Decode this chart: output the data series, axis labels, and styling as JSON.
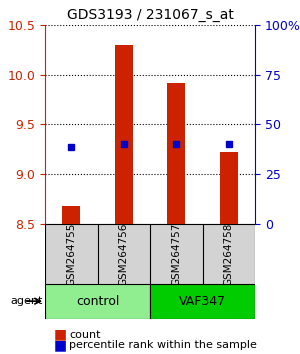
{
  "title": "GDS3193 / 231067_s_at",
  "samples": [
    "GSM264755",
    "GSM264756",
    "GSM264757",
    "GSM264758"
  ],
  "groups": [
    "control",
    "control",
    "VAF347",
    "VAF347"
  ],
  "group_labels": [
    "control",
    "VAF347"
  ],
  "group_colors": [
    "#90EE90",
    "#00CC00"
  ],
  "bar_color": "#CC2200",
  "dot_color": "#0000CC",
  "count_values": [
    8.68,
    10.3,
    9.92,
    9.22
  ],
  "percentile_values": [
    9.27,
    9.3,
    9.3,
    9.3
  ],
  "ylim_left": [
    8.5,
    10.5
  ],
  "yticks_left": [
    8.5,
    9.0,
    9.5,
    10.0,
    10.5
  ],
  "ylim_right": [
    0,
    100
  ],
  "yticks_right": [
    0,
    25,
    50,
    75,
    100
  ],
  "yticklabels_right": [
    "0",
    "25",
    "50",
    "75",
    "100%"
  ],
  "bar_bottom": 8.5,
  "agent_label": "agent"
}
